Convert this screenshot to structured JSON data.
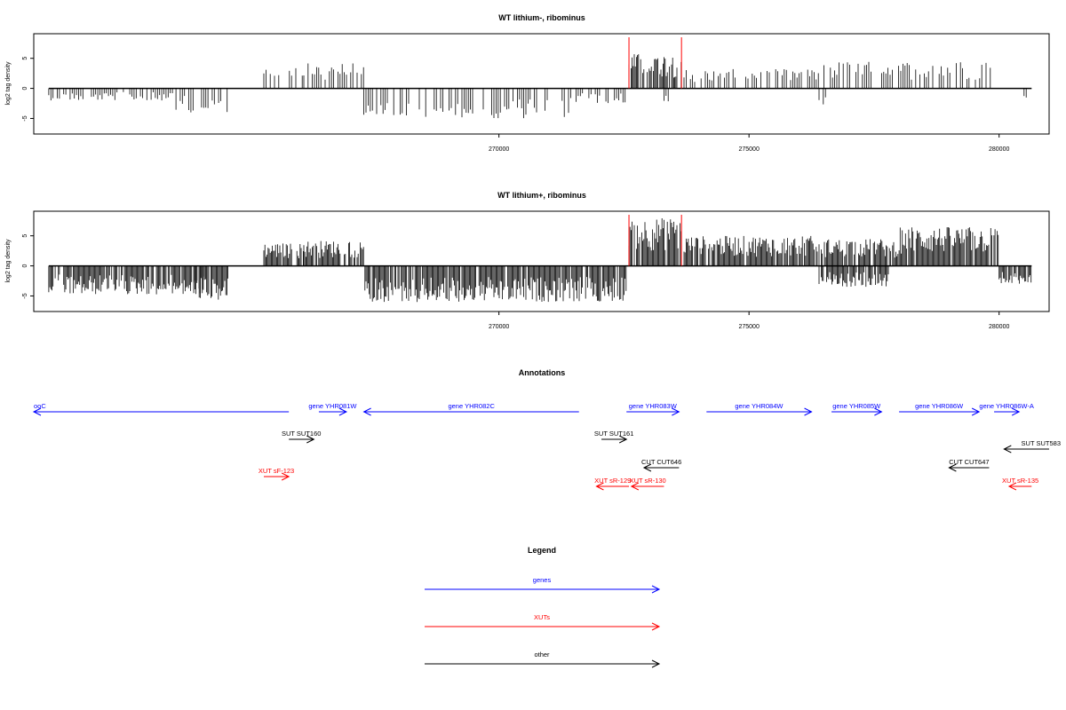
{
  "chart_data": [
    {
      "type": "bar",
      "title": "WT lithium-, ribominus",
      "ylabel": "log2 tag density",
      "xlabel": "",
      "xlim": [
        260700,
        281000
      ],
      "ylim": [
        -7,
        8.5
      ],
      "x_ticks": [
        270000,
        275000,
        280000
      ],
      "y_ticks": [
        -5,
        0,
        5
      ],
      "markers": [
        272600,
        273650
      ],
      "regions": [
        {
          "start": 261000,
          "end": 263500,
          "dir": -1,
          "amp": 2.0
        },
        {
          "start": 263500,
          "end": 264600,
          "dir": -1,
          "amp": 4.0
        },
        {
          "start": 265300,
          "end": 266100,
          "dir": 1,
          "amp": 3.5
        },
        {
          "start": 266100,
          "end": 267300,
          "dir": 1,
          "amp": 4.2
        },
        {
          "start": 267300,
          "end": 271500,
          "dir": -1,
          "amp": 5.0
        },
        {
          "start": 271500,
          "end": 272550,
          "dir": -1,
          "amp": 2.5
        },
        {
          "start": 272600,
          "end": 273650,
          "dir": 1,
          "amp": 5.8
        },
        {
          "start": 273300,
          "end": 273400,
          "dir": -1,
          "amp": 3.2
        },
        {
          "start": 273700,
          "end": 276400,
          "dir": 1,
          "amp": 3.2
        },
        {
          "start": 276400,
          "end": 276550,
          "dir": -1,
          "amp": 2.8
        },
        {
          "start": 276500,
          "end": 279900,
          "dir": 1,
          "amp": 4.5
        },
        {
          "start": 280500,
          "end": 280650,
          "dir": -1,
          "amp": 1.8
        }
      ]
    },
    {
      "type": "bar",
      "title": "WT lithium+, ribominus",
      "ylabel": "log2 tag density",
      "xlabel": "",
      "xlim": [
        260700,
        281000
      ],
      "ylim": [
        -7,
        8.5
      ],
      "x_ticks": [
        270000,
        275000,
        280000
      ],
      "y_ticks": [
        -5,
        0,
        5
      ],
      "markers": [
        272600,
        273650
      ],
      "regions": [
        {
          "start": 261000,
          "end": 264100,
          "dir": -1,
          "amp": 4.8
        },
        {
          "start": 263900,
          "end": 264600,
          "dir": -1,
          "amp": 5.8
        },
        {
          "start": 265300,
          "end": 266100,
          "dir": 1,
          "amp": 3.8
        },
        {
          "start": 266100,
          "end": 267300,
          "dir": 1,
          "amp": 4.2
        },
        {
          "start": 267300,
          "end": 272550,
          "dir": -1,
          "amp": 6.0
        },
        {
          "start": 272600,
          "end": 273650,
          "dir": 1,
          "amp": 8.0
        },
        {
          "start": 273700,
          "end": 276400,
          "dir": 1,
          "amp": 5.0
        },
        {
          "start": 276400,
          "end": 277800,
          "dir": -1,
          "amp": 3.5
        },
        {
          "start": 276400,
          "end": 278000,
          "dir": 1,
          "amp": 4.5
        },
        {
          "start": 278000,
          "end": 280000,
          "dir": 1,
          "amp": 6.5
        },
        {
          "start": 280000,
          "end": 280650,
          "dir": -1,
          "amp": 3.0
        }
      ]
    }
  ],
  "annotations": {
    "title": "Annotations",
    "features": [
      {
        "label": "ooC",
        "start": 260700,
        "end": 265800,
        "strand": "-",
        "row": 0,
        "color": "#0000ff"
      },
      {
        "label": "gene YHR081W",
        "start": 266400,
        "end": 266950,
        "strand": "+",
        "row": 0,
        "color": "#0000ff"
      },
      {
        "label": "gene YHR082C",
        "start": 267300,
        "end": 271600,
        "strand": "-",
        "row": 0,
        "color": "#0000ff"
      },
      {
        "label": "gene YHR083W",
        "start": 272550,
        "end": 273600,
        "strand": "+",
        "row": 0,
        "color": "#0000ff"
      },
      {
        "label": "gene YHR084W",
        "start": 274150,
        "end": 276250,
        "strand": "+",
        "row": 0,
        "color": "#0000ff"
      },
      {
        "label": "gene YHR085W",
        "start": 276650,
        "end": 277650,
        "strand": "+",
        "row": 0,
        "color": "#0000ff"
      },
      {
        "label": "gene YHR086W",
        "start": 278000,
        "end": 279600,
        "strand": "+",
        "row": 0,
        "color": "#0000ff"
      },
      {
        "label": "gene YHR086W-A",
        "start": 279900,
        "end": 280400,
        "strand": "+",
        "row": 0,
        "color": "#0000ff"
      },
      {
        "label": "SUT SUT160",
        "start": 265800,
        "end": 266300,
        "strand": "+",
        "row": 1,
        "color": "#000000"
      },
      {
        "label": "SUT SUT161",
        "start": 272050,
        "end": 272550,
        "strand": "+",
        "row": 1,
        "color": "#000000"
      },
      {
        "label": "SUT SUT583",
        "start": 280100,
        "end": 281300,
        "strand": "-",
        "row": 2,
        "color": "#000000"
      },
      {
        "label": "CUT CUT646",
        "start": 272900,
        "end": 273600,
        "strand": "-",
        "row": 3,
        "color": "#000000"
      },
      {
        "label": "CUT CUT647",
        "start": 279000,
        "end": 279800,
        "strand": "-",
        "row": 3,
        "color": "#000000"
      },
      {
        "label": "XUT sF-123",
        "start": 265300,
        "end": 265800,
        "strand": "+",
        "row": 4,
        "color": "#ff0000"
      },
      {
        "label": "XUT sR-129",
        "start": 271950,
        "end": 272600,
        "strand": "-",
        "row": 5,
        "color": "#ff0000"
      },
      {
        "label": "XUT sR-130",
        "start": 272650,
        "end": 273300,
        "strand": "-",
        "row": 5,
        "color": "#ff0000"
      },
      {
        "label": "XUT sR-135",
        "start": 280200,
        "end": 280650,
        "strand": "-",
        "row": 5,
        "color": "#ff0000"
      }
    ]
  },
  "legend": {
    "title": "Legend",
    "items": [
      {
        "label": "genes",
        "color": "#0000ff"
      },
      {
        "label": "XUTs",
        "color": "#ff0000"
      },
      {
        "label": "other",
        "color": "#000000"
      }
    ]
  },
  "colors": {
    "axis": "#000000",
    "marker": "#ff0000",
    "genes": "#0000ff",
    "xuts": "#ff0000",
    "other": "#000000"
  }
}
